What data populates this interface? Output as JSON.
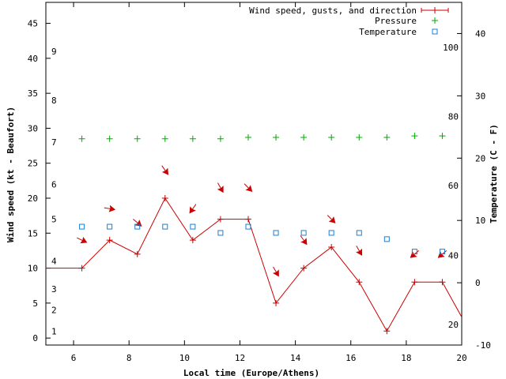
{
  "chart_data": {
    "type": "line",
    "title": "",
    "xlabel": "Local time (Europe/Athens)",
    "ylabel": "Wind speed (kt - Beaufort)",
    "y2label": "Temperature (C - F)",
    "xlim": [
      5,
      20
    ],
    "ylim": [
      -1,
      48
    ],
    "y2lim": [
      -10,
      45
    ],
    "x_ticks": [
      6,
      8,
      10,
      12,
      14,
      16,
      18,
      20
    ],
    "y_ticks": [
      0,
      5,
      10,
      15,
      20,
      25,
      30,
      35,
      40,
      45
    ],
    "y2_ticks": [
      -10,
      0,
      10,
      20,
      30,
      40
    ],
    "beaufort_labels": [
      {
        "label": "1",
        "y": 1
      },
      {
        "label": "2",
        "y": 4
      },
      {
        "label": "3",
        "y": 7
      },
      {
        "label": "4",
        "y": 11
      },
      {
        "label": "5",
        "y": 17
      },
      {
        "label": "6",
        "y": 22
      },
      {
        "label": "7",
        "y": 28
      },
      {
        "label": "8",
        "y": 34
      },
      {
        "label": "9",
        "y": 41
      }
    ],
    "fahrenheit_labels": [
      {
        "label": "20",
        "c": -6.7
      },
      {
        "label": "40",
        "c": 4.4
      },
      {
        "label": "60",
        "c": 15.6
      },
      {
        "label": "80",
        "c": 26.7
      },
      {
        "label": "100",
        "c": 37.8
      }
    ],
    "legend": [
      {
        "label": "Wind speed, gusts, and direction",
        "color": "#cc0000",
        "marker": "line-plus"
      },
      {
        "label": "Pressure",
        "color": "#00aa00",
        "marker": "plus"
      },
      {
        "label": "Temperature",
        "color": "#1a7fd4",
        "marker": "square"
      }
    ],
    "series": [
      {
        "name": "Wind speed, gusts, and direction",
        "color": "#cc0000",
        "x": [
          5,
          6.3,
          7.3,
          8.3,
          9.3,
          10.3,
          11.3,
          12.3,
          13.3,
          14.3,
          15.3,
          16.3,
          17.3,
          18.3,
          19.3,
          20
        ],
        "values": [
          10,
          10,
          14,
          12,
          20,
          14,
          17,
          17,
          5,
          10,
          13,
          8,
          1,
          8,
          8,
          3
        ],
        "markers": [
          false,
          true,
          true,
          true,
          true,
          true,
          true,
          true,
          true,
          true,
          true,
          true,
          true,
          true,
          true,
          false
        ],
        "direction_arrows": [
          {
            "x": 6.3,
            "y": 14,
            "angle": 25
          },
          {
            "x": 7.3,
            "y": 18.5,
            "angle": 10
          },
          {
            "x": 8.3,
            "y": 16.5,
            "angle": 40
          },
          {
            "x": 9.3,
            "y": 24,
            "angle": 55
          },
          {
            "x": 10.3,
            "y": 18.5,
            "angle": 125
          },
          {
            "x": 11.3,
            "y": 21.5,
            "angle": 60
          },
          {
            "x": 12.3,
            "y": 21.5,
            "angle": 45
          },
          {
            "x": 13.3,
            "y": 9.5,
            "angle": 60
          },
          {
            "x": 14.3,
            "y": 14,
            "angle": 55
          },
          {
            "x": 15.3,
            "y": 17,
            "angle": 45
          },
          {
            "x": 16.3,
            "y": 12.5,
            "angle": 60
          },
          {
            "x": 18.3,
            "y": 12,
            "angle": 140
          },
          {
            "x": 19.3,
            "y": 12,
            "angle": 140
          }
        ]
      },
      {
        "name": "Pressure",
        "color": "#00aa00",
        "axis": "left-scaled",
        "x": [
          6.3,
          7.3,
          8.3,
          9.3,
          10.3,
          11.3,
          12.3,
          13.3,
          14.3,
          15.3,
          16.3,
          17.3,
          18.3,
          19.3
        ],
        "values": [
          28.5,
          28.5,
          28.5,
          28.5,
          28.5,
          28.5,
          28.7,
          28.7,
          28.7,
          28.7,
          28.7,
          28.7,
          28.9,
          28.9
        ]
      },
      {
        "name": "Temperature",
        "color": "#1a7fd4",
        "axis": "right",
        "x": [
          6.3,
          7.3,
          8.3,
          9.3,
          10.3,
          11.3,
          12.3,
          13.3,
          14.3,
          15.3,
          16.3,
          17.3,
          18.3,
          19.3
        ],
        "values": [
          9,
          9,
          9,
          9,
          9,
          8,
          9,
          8,
          8,
          8,
          8,
          7,
          5,
          5
        ]
      }
    ]
  }
}
